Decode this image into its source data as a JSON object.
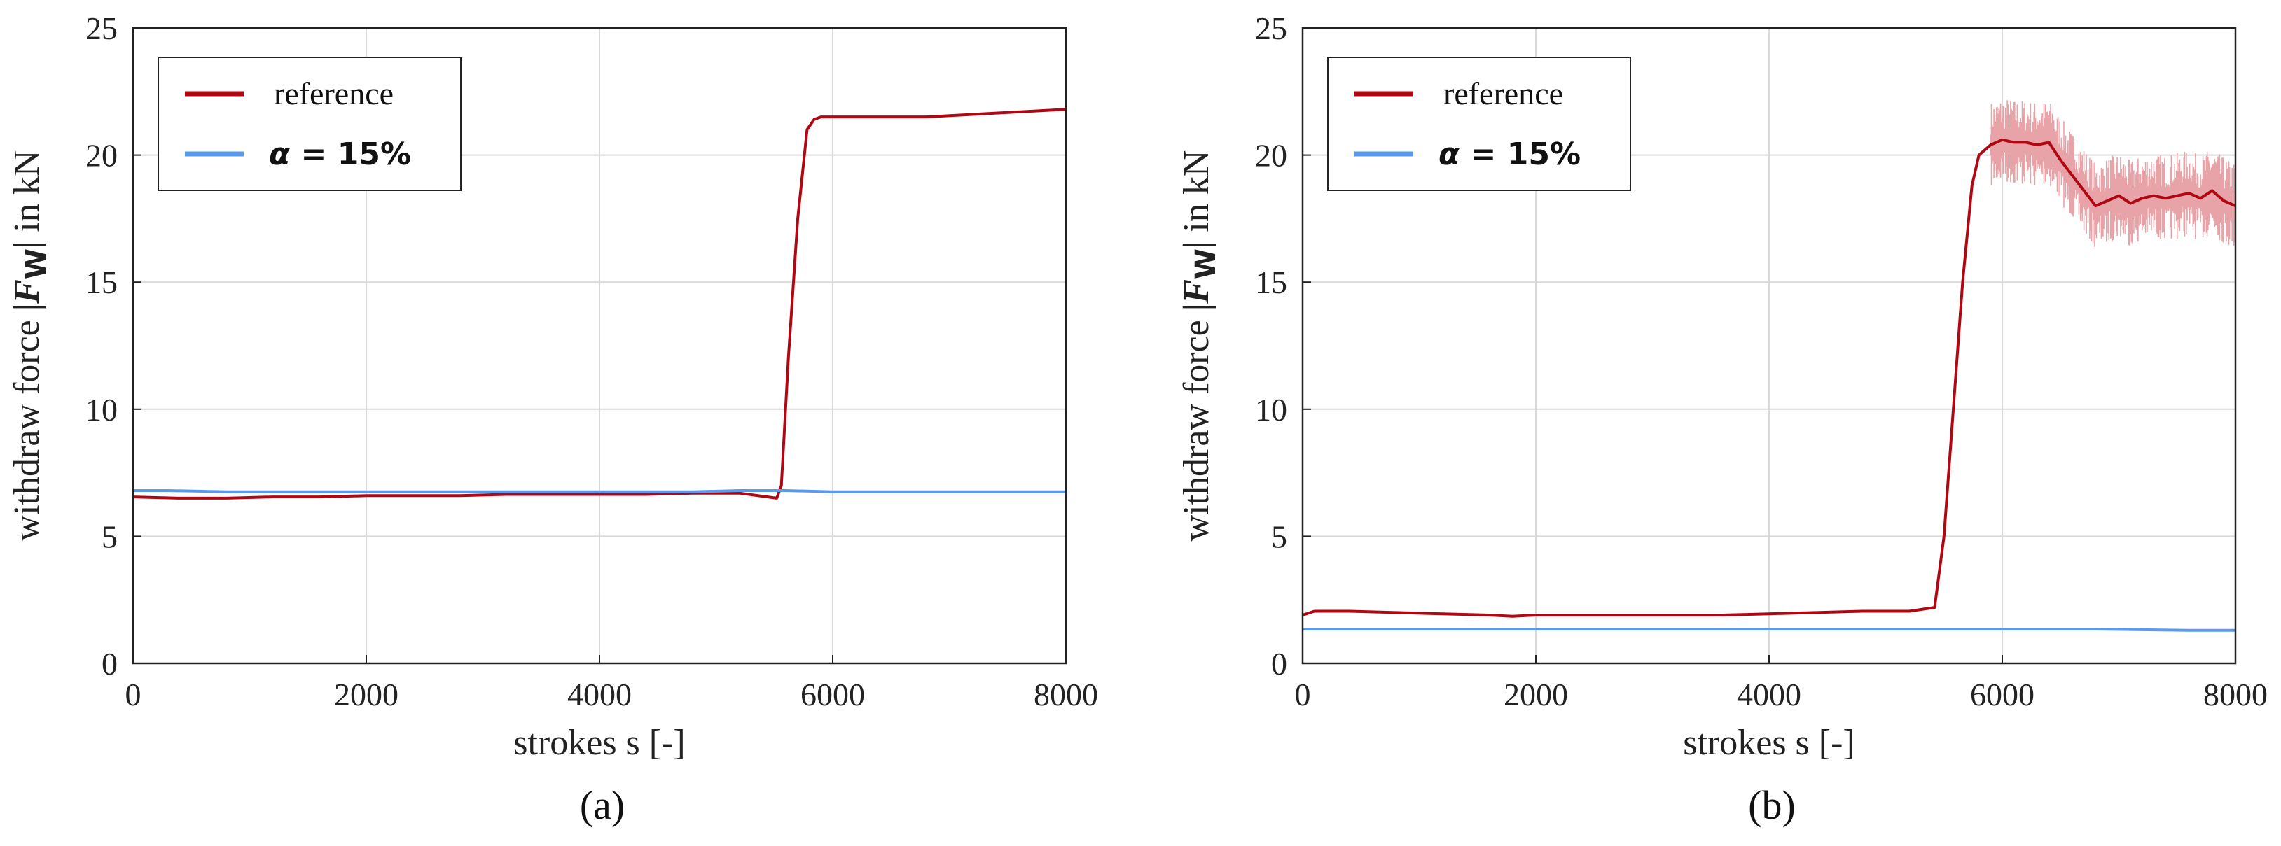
{
  "chart_data": [
    {
      "type": "line",
      "caption": "(a)",
      "xlabel": "strokes s [-]",
      "ylabel_prefix": "withdraw force |",
      "ylabel_symbol": "F",
      "ylabel_sub": "W",
      "ylabel_suffix": "| in kN",
      "xlim": [
        0,
        8000
      ],
      "ylim": [
        0,
        25
      ],
      "xticks": [
        "0",
        "2000",
        "4000",
        "6000",
        "8000"
      ],
      "yticks": [
        "0",
        "5",
        "10",
        "15",
        "20",
        "25"
      ],
      "grid": true,
      "legend_position": "top-left",
      "series": [
        {
          "name": "reference",
          "color": "#b00712",
          "noisy": false,
          "x": [
            0,
            400,
            800,
            1200,
            1600,
            2000,
            2400,
            2800,
            3200,
            3600,
            4000,
            4400,
            4800,
            5200,
            5520,
            5560,
            5620,
            5700,
            5780,
            5840,
            5900,
            6000,
            6400,
            6800,
            7200,
            7600,
            8000
          ],
          "y": [
            6.55,
            6.5,
            6.5,
            6.55,
            6.55,
            6.6,
            6.6,
            6.6,
            6.65,
            6.65,
            6.65,
            6.65,
            6.7,
            6.7,
            6.5,
            7.0,
            12.0,
            17.5,
            21.0,
            21.4,
            21.5,
            21.5,
            21.5,
            21.5,
            21.6,
            21.7,
            21.8
          ]
        },
        {
          "name": "α = 15%",
          "color": "#5a99f0",
          "noisy": false,
          "x": [
            0,
            300,
            800,
            1600,
            2400,
            3200,
            4000,
            4800,
            5200,
            5600,
            6000,
            6800,
            7600,
            8000
          ],
          "y": [
            6.8,
            6.8,
            6.75,
            6.75,
            6.75,
            6.75,
            6.75,
            6.75,
            6.8,
            6.8,
            6.75,
            6.75,
            6.75,
            6.75
          ]
        }
      ]
    },
    {
      "type": "line",
      "caption": "(b)",
      "xlabel": "strokes s [-]",
      "ylabel_prefix": "withdraw force |",
      "ylabel_symbol": "F",
      "ylabel_sub": "W",
      "ylabel_suffix": "| in kN",
      "xlim": [
        0,
        8000
      ],
      "ylim": [
        0,
        25
      ],
      "xticks": [
        "0",
        "2000",
        "4000",
        "6000",
        "8000"
      ],
      "yticks": [
        "0",
        "5",
        "10",
        "15",
        "20",
        "25"
      ],
      "grid": true,
      "legend_position": "top-left",
      "series": [
        {
          "name": "reference",
          "color": "#b00712",
          "noisy": true,
          "x": [
            0,
            100,
            400,
            800,
            1200,
            1600,
            1800,
            2000,
            2400,
            2800,
            3200,
            3600,
            4000,
            4400,
            4800,
            5200,
            5420,
            5500,
            5580,
            5660,
            5740,
            5800,
            5900,
            6000,
            6100,
            6200,
            6300,
            6400,
            6500,
            6600,
            6700,
            6800,
            6900,
            7000,
            7100,
            7200,
            7300,
            7400,
            7500,
            7600,
            7700,
            7800,
            7900,
            8000
          ],
          "y": [
            1.9,
            2.05,
            2.05,
            2.0,
            1.95,
            1.9,
            1.85,
            1.9,
            1.9,
            1.9,
            1.9,
            1.9,
            1.95,
            2.0,
            2.05,
            2.05,
            2.2,
            5.0,
            10.0,
            15.0,
            18.8,
            20.0,
            20.4,
            20.6,
            20.5,
            20.5,
            20.4,
            20.5,
            19.8,
            19.2,
            18.6,
            18.0,
            18.2,
            18.4,
            18.1,
            18.3,
            18.4,
            18.3,
            18.4,
            18.5,
            18.3,
            18.6,
            18.2,
            18.0
          ]
        },
        {
          "name": "α = 15%",
          "color": "#5a99f0",
          "noisy": false,
          "x": [
            0,
            400,
            1200,
            2000,
            2800,
            3600,
            4400,
            5200,
            6000,
            6800,
            7600,
            8000
          ],
          "y": [
            1.35,
            1.35,
            1.35,
            1.35,
            1.35,
            1.35,
            1.35,
            1.35,
            1.35,
            1.35,
            1.3,
            1.3
          ]
        }
      ]
    }
  ]
}
